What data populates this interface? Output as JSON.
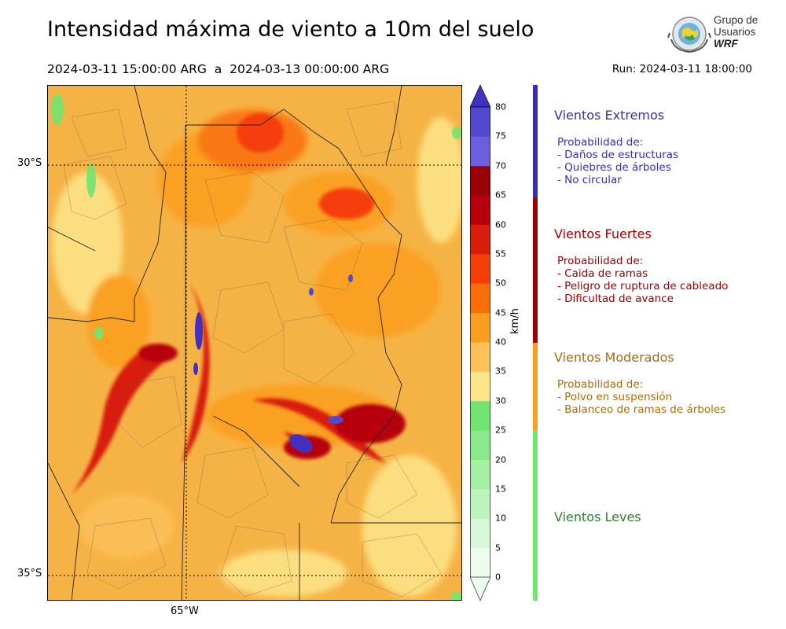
{
  "title": "Intensidad máxima de viento a 10m del suelo",
  "subtitle": "2024-03-11 15:00:00 ARG  a  2024-03-13 00:00:00 ARG",
  "run": "Run: 2024-03-11 18:00:00",
  "logo": {
    "line1": "Grupo de",
    "line2": "Usuarios",
    "line3": "WRF"
  },
  "map": {
    "lat_labels": [
      "30°S",
      "35°S"
    ],
    "lon_labels": [
      "65°W"
    ]
  },
  "colorbar": {
    "unit": "km/h",
    "ticks": [
      "0",
      "5",
      "10",
      "15",
      "20",
      "25",
      "30",
      "35",
      "40",
      "45",
      "50",
      "55",
      "60",
      "65",
      "70",
      "75",
      "80"
    ],
    "colors": [
      "#eefcee",
      "#d6f8d6",
      "#bdf4bd",
      "#a5f0a5",
      "#8be98b",
      "#72e472",
      "#fde68a",
      "#fdc15a",
      "#fb9d1e",
      "#fa6e0a",
      "#f63e08",
      "#d81e0b",
      "#b7000c",
      "#9a0008",
      "#6c5fe0",
      "#5548d0",
      "#4330bf"
    ]
  },
  "categories": [
    {
      "title": "Vientos Extremos",
      "color": "#3b2db0",
      "lines": [
        "Probabilidad de:",
        "- Daños de estructuras",
        "- Quiebres de árboles",
        "- No circular"
      ]
    },
    {
      "title": "Vientos Fuertes",
      "color": "#a00000",
      "lines": [
        "Probabilidad de:",
        "- Caida de ramas",
        "- Peligro de ruptura de cableado",
        "- Dificultad de avance"
      ]
    },
    {
      "title": "Vientos Moderados",
      "color": "#a86d0c",
      "lines": [
        "Probabilidad de:",
        "- Polvo en suspensión",
        "- Balanceo de ramas de árboles"
      ]
    },
    {
      "title": "Vientos Leves",
      "color": "#2e7d32",
      "lines": []
    }
  ]
}
